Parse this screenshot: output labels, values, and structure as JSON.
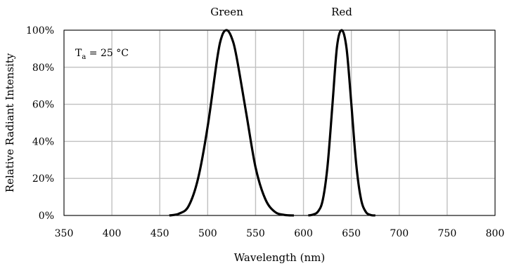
{
  "chart_data": {
    "type": "line",
    "xlabel": "Wavelength (nm)",
    "ylabel": "Relative Radiant Intensity",
    "xlim": [
      350,
      800
    ],
    "ylim": [
      0,
      100
    ],
    "x_ticks": [
      350,
      400,
      450,
      500,
      550,
      600,
      650,
      700,
      750,
      800
    ],
    "x_tick_labels": [
      "350",
      "400",
      "450",
      "500",
      "550",
      "600",
      "650",
      "700",
      "750",
      "800"
    ],
    "y_ticks": [
      0,
      20,
      40,
      60,
      80,
      100
    ],
    "y_tick_labels": [
      "0%",
      "20%",
      "40%",
      "60%",
      "80%",
      "100%"
    ],
    "grid": true,
    "annotation": {
      "main": "T",
      "sub": "a",
      "rest": " = 25 °C"
    },
    "series": [
      {
        "name": "Green",
        "color": "#000000",
        "x": [
          460,
          470,
          480,
          490,
          500,
          510,
          515,
          520,
          525,
          530,
          540,
          550,
          560,
          570,
          580,
          590
        ],
        "y": [
          0,
          1,
          5,
          20,
          48,
          85,
          97,
          100,
          96,
          86,
          56,
          26,
          9,
          2,
          0.3,
          0
        ]
      },
      {
        "name": "Red",
        "color": "#000000",
        "x": [
          605,
          610,
          615,
          620,
          625,
          630,
          635,
          640,
          645,
          650,
          655,
          660,
          665,
          670,
          675
        ],
        "y": [
          0,
          0.5,
          2,
          8,
          26,
          58,
          91,
          100,
          90,
          60,
          28,
          9,
          2,
          0.3,
          0
        ]
      }
    ]
  }
}
